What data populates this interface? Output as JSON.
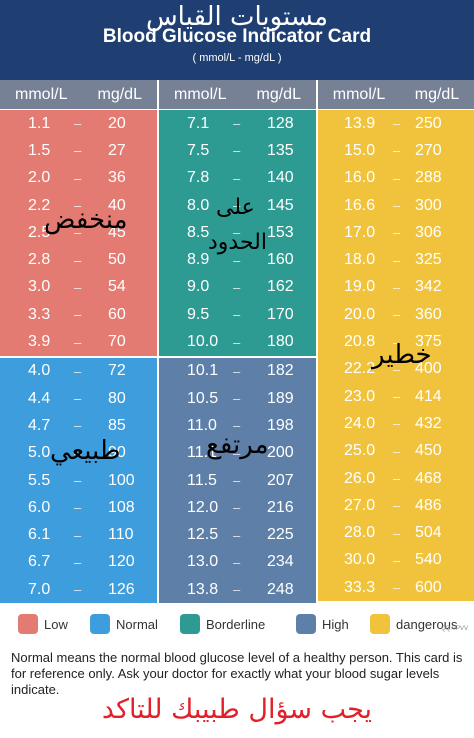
{
  "header": {
    "title_ar": "مستويات القياس",
    "title_en": "Blood Glucose Indicator Card",
    "units": "( mmol/L - mg/dL )"
  },
  "column_headers": {
    "mmol": "mmol/L",
    "mgdl": "mg/dL"
  },
  "colors": {
    "header_bg": "#1f3f73",
    "column_header_bg": "#778196",
    "low": "#e47b72",
    "normal": "#3e9edd",
    "borderline": "#2e9b93",
    "high": "#5e7fa8",
    "dangerous": "#f1c33c"
  },
  "columns": [
    {
      "blocks": [
        {
          "category": "low",
          "rows": [
            {
              "mmol": "1.1",
              "mgdl": "20"
            },
            {
              "mmol": "1.5",
              "mgdl": "27"
            },
            {
              "mmol": "2.0",
              "mgdl": "36"
            },
            {
              "mmol": "2.2",
              "mgdl": "40"
            },
            {
              "mmol": "2.5",
              "mgdl": "45"
            },
            {
              "mmol": "2.8",
              "mgdl": "50"
            },
            {
              "mmol": "3.0",
              "mgdl": "54"
            },
            {
              "mmol": "3.3",
              "mgdl": "60"
            },
            {
              "mmol": "3.9",
              "mgdl": "70"
            }
          ]
        },
        {
          "category": "normal",
          "rows": [
            {
              "mmol": "4.0",
              "mgdl": "72"
            },
            {
              "mmol": "4.4",
              "mgdl": "80"
            },
            {
              "mmol": "4.7",
              "mgdl": "85"
            },
            {
              "mmol": "5.0",
              "mgdl": "90"
            },
            {
              "mmol": "5.5",
              "mgdl": "100"
            },
            {
              "mmol": "6.0",
              "mgdl": "108"
            },
            {
              "mmol": "6.1",
              "mgdl": "110"
            },
            {
              "mmol": "6.7",
              "mgdl": "120"
            },
            {
              "mmol": "7.0",
              "mgdl": "126"
            }
          ]
        }
      ]
    },
    {
      "blocks": [
        {
          "category": "borderline",
          "rows": [
            {
              "mmol": "7.1",
              "mgdl": "128"
            },
            {
              "mmol": "7.5",
              "mgdl": "135"
            },
            {
              "mmol": "7.8",
              "mgdl": "140"
            },
            {
              "mmol": "8.0",
              "mgdl": "145"
            },
            {
              "mmol": "8.5",
              "mgdl": "153"
            },
            {
              "mmol": "8.9",
              "mgdl": "160"
            },
            {
              "mmol": "9.0",
              "mgdl": "162"
            },
            {
              "mmol": "9.5",
              "mgdl": "170"
            },
            {
              "mmol": "10.0",
              "mgdl": "180"
            }
          ]
        },
        {
          "category": "high",
          "rows": [
            {
              "mmol": "10.1",
              "mgdl": "182"
            },
            {
              "mmol": "10.5",
              "mgdl": "189"
            },
            {
              "mmol": "11.0",
              "mgdl": "198"
            },
            {
              "mmol": "11.1",
              "mgdl": "200"
            },
            {
              "mmol": "11.5",
              "mgdl": "207"
            },
            {
              "mmol": "12.0",
              "mgdl": "216"
            },
            {
              "mmol": "12.5",
              "mgdl": "225"
            },
            {
              "mmol": "13.0",
              "mgdl": "234"
            },
            {
              "mmol": "13.8",
              "mgdl": "248"
            }
          ]
        }
      ]
    },
    {
      "blocks": [
        {
          "category": "dangerous",
          "rows": [
            {
              "mmol": "13.9",
              "mgdl": "250"
            },
            {
              "mmol": "15.0",
              "mgdl": "270"
            },
            {
              "mmol": "16.0",
              "mgdl": "288"
            },
            {
              "mmol": "16.6",
              "mgdl": "300"
            },
            {
              "mmol": "17.0",
              "mgdl": "306"
            },
            {
              "mmol": "18.0",
              "mgdl": "325"
            },
            {
              "mmol": "19.0",
              "mgdl": "342"
            },
            {
              "mmol": "20.0",
              "mgdl": "360"
            },
            {
              "mmol": "20.8",
              "mgdl": "375"
            },
            {
              "mmol": "22.2",
              "mgdl": "400"
            },
            {
              "mmol": "23.0",
              "mgdl": "414"
            },
            {
              "mmol": "24.0",
              "mgdl": "432"
            },
            {
              "mmol": "25.0",
              "mgdl": "450"
            },
            {
              "mmol": "26.0",
              "mgdl": "468"
            },
            {
              "mmol": "27.0",
              "mgdl": "486"
            },
            {
              "mmol": "28.0",
              "mgdl": "504"
            },
            {
              "mmol": "30.0",
              "mgdl": "540"
            },
            {
              "mmol": "33.3",
              "mgdl": "600"
            }
          ]
        }
      ]
    }
  ],
  "overlays": {
    "low": "منخفض",
    "borderline_1": "على",
    "borderline_2": "الحدود",
    "normal": "طبيعي",
    "high": "مرتفع",
    "dangerous": "خطير"
  },
  "legend": [
    {
      "label": "Low",
      "color": "#e47b72"
    },
    {
      "label": "Normal",
      "color": "#3e9edd"
    },
    {
      "label": "Borderline",
      "color": "#2e9b93"
    },
    {
      "label": "High",
      "color": "#5e7fa8"
    },
    {
      "label": "dangerous",
      "color": "#f1c33c"
    }
  ],
  "note": "Normal means the normal blood glucose level of a healthy person. This card is for reference only. Ask your doctor for exactly what your blood sugar levels indicate.",
  "bottom_ar": "يجب سؤال طبيبك للتاكد",
  "credit": "QQ.VPVV"
}
